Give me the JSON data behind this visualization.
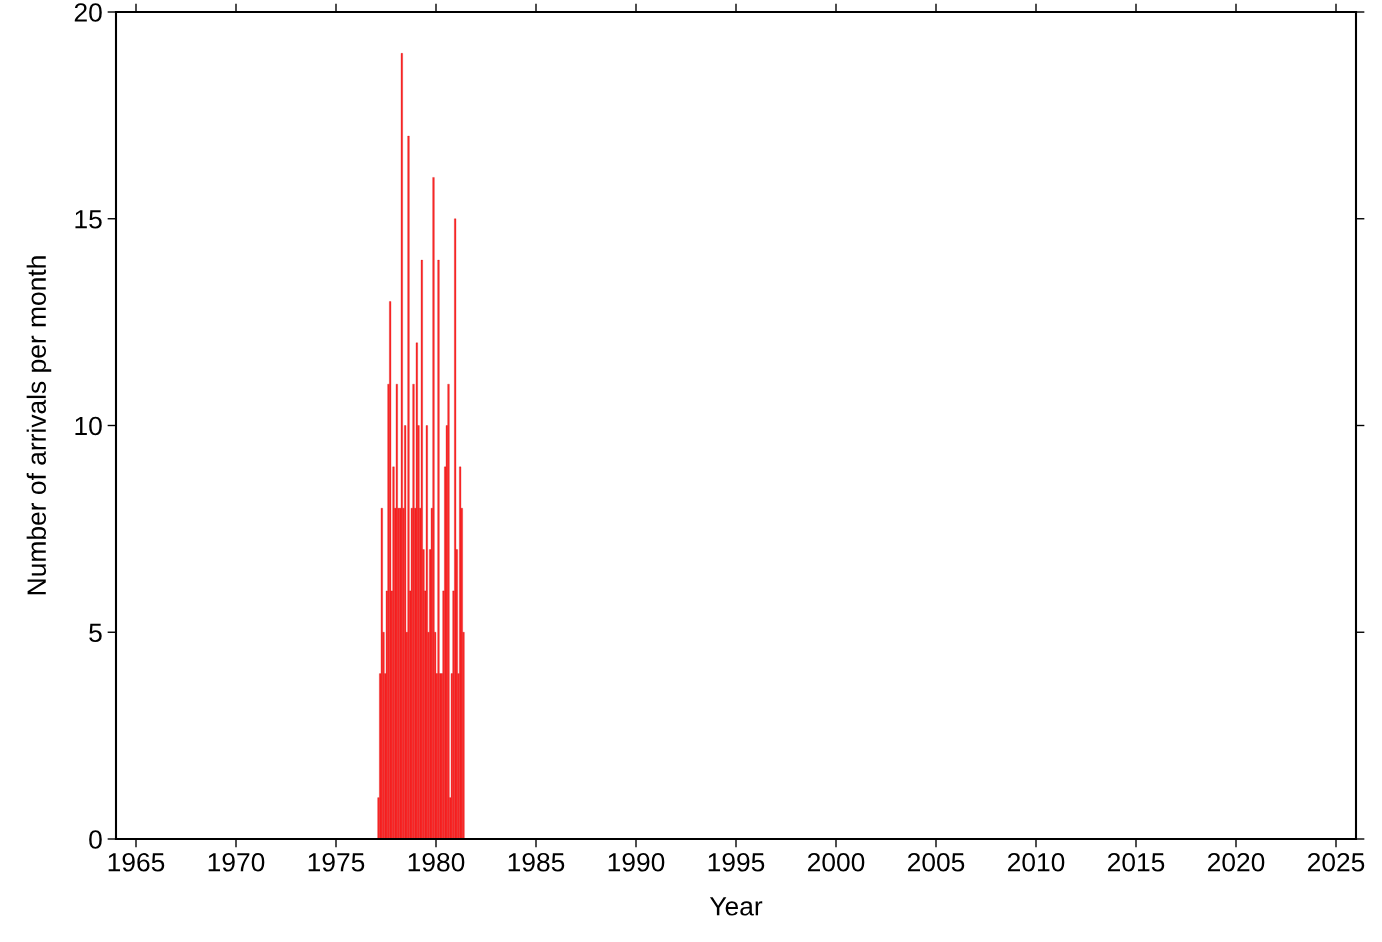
{
  "chart_data": {
    "type": "histogram",
    "xlabel": "Year",
    "ylabel": "Number of arrivals per month",
    "color": "#ff2a2a",
    "bins": [
      1977.083,
      1977.167,
      1977.25,
      1977.333,
      1977.417,
      1977.5,
      1977.583,
      1977.667,
      1977.75,
      1977.833,
      1977.917,
      1978.0,
      1978.083,
      1978.167,
      1978.25,
      1978.333,
      1978.417,
      1978.5,
      1978.583,
      1978.667,
      1978.75,
      1978.833,
      1978.917,
      1979.0,
      1979.083,
      1979.167,
      1979.25,
      1979.333,
      1979.417,
      1979.5,
      1979.583,
      1979.667,
      1979.75,
      1979.833,
      1979.917,
      1980.0,
      1980.083,
      1980.167,
      1980.25,
      1980.333,
      1980.417,
      1980.5,
      1980.583,
      1980.667,
      1980.75,
      1980.833,
      1980.917,
      1981.0,
      1981.083,
      1981.167,
      1981.25,
      1981.333,
      1981.417
    ],
    "values": [
      1,
      4,
      8,
      5,
      4,
      6,
      11,
      13,
      6,
      9,
      8,
      11,
      8,
      8,
      19,
      8,
      10,
      5,
      17,
      6,
      8,
      11,
      8,
      12,
      10,
      8,
      14,
      7,
      6,
      10,
      5,
      7,
      8,
      16,
      5,
      4,
      14,
      4,
      4,
      6,
      9,
      10,
      11,
      1,
      4,
      6,
      15,
      7,
      4,
      9,
      8,
      5
    ],
    "xlim": [
      1964,
      2026
    ],
    "xticks": [
      1965,
      1970,
      1975,
      1980,
      1985,
      1990,
      1995,
      2000,
      2005,
      2010,
      2015,
      2020,
      2025
    ],
    "ylim": [
      0,
      20
    ],
    "yticks": [
      0,
      5,
      10,
      15,
      20
    ],
    "grid": false
  }
}
